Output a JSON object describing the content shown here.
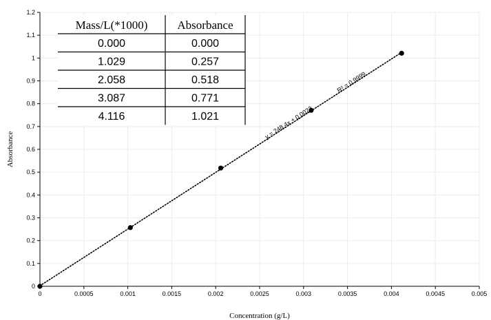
{
  "chart_data": {
    "type": "scatter",
    "xlabel": "Concentration (g/L)",
    "ylabel": "Absorbance",
    "xlim": [
      0,
      0.005
    ],
    "ylim": [
      0,
      1.2
    ],
    "x_ticks": [
      "0",
      "0.0005",
      "0.001",
      "0.0015",
      "0.002",
      "0.0025",
      "0.003",
      "0.0035",
      "0.004",
      "0.0045",
      "0.005"
    ],
    "y_ticks": [
      "0",
      "0.1",
      "0.2",
      "0.3",
      "0.4",
      "0.5",
      "0.6",
      "0.7",
      "0.8",
      "0.9",
      "1",
      "1.1",
      "1.2"
    ],
    "grid": true,
    "series": [
      {
        "x": [
          0,
          0.001029,
          0.002058,
          0.003087,
          0.004116
        ],
        "y": [
          0,
          0.257,
          0.518,
          0.771,
          1.021
        ],
        "marker": "circle",
        "color": "#000000"
      }
    ],
    "trendline": {
      "type": "linear",
      "slope": 248.4,
      "intercept": 0.0022,
      "x_range": [
        0,
        0.004116
      ],
      "style": "dotted",
      "equation_label": "y = 248.4x + 0.0022",
      "r2_label": "R² = 0.9999"
    },
    "inset_table": {
      "headers": [
        "Mass/L(*1000)",
        "Absorbance"
      ],
      "rows": [
        [
          "0.000",
          "0.000"
        ],
        [
          "1.029",
          "0.257"
        ],
        [
          "2.058",
          "0.518"
        ],
        [
          "3.087",
          "0.771"
        ],
        [
          "4.116",
          "1.021"
        ]
      ]
    }
  }
}
